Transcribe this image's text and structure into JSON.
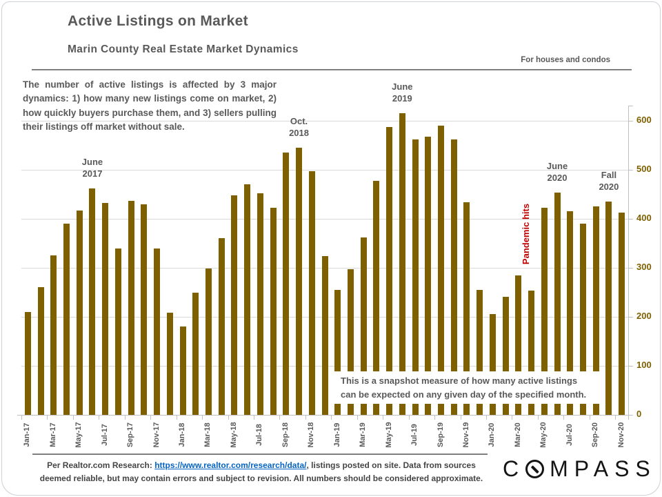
{
  "header": {
    "title": "Active Listings on Market",
    "subtitle": "Marin County Real Estate Market Dynamics",
    "tagline": "For houses and condos"
  },
  "intro_text": "The number of active listings is affected by 3 major dynamics: 1) how many new listings come on market, 2) how quickly buyers purchase them, and 3) sellers pulling their listings off market without sale.",
  "chart_data": {
    "type": "bar",
    "title": "Active Listings on Market",
    "xlabel": "",
    "ylabel": "",
    "ylim": [
      0,
      650
    ],
    "y_ticks": [
      0,
      100,
      200,
      300,
      400,
      500,
      600
    ],
    "x_label_every": 2,
    "grid": "horizontal",
    "axis_side": "right",
    "categories": [
      "Jan-17",
      "Feb-17",
      "Mar-17",
      "Apr-17",
      "May-17",
      "Jun-17",
      "Jul-17",
      "Aug-17",
      "Sep-17",
      "Oct-17",
      "Nov-17",
      "Dec-17",
      "Jan-18",
      "Feb-18",
      "Mar-18",
      "Apr-18",
      "May-18",
      "Jun-18",
      "Jul-18",
      "Aug-18",
      "Sep-18",
      "Oct-18",
      "Nov-18",
      "Dec-18",
      "Jan-19",
      "Feb-19",
      "Mar-19",
      "Apr-19",
      "May-19",
      "Jun-19",
      "Jul-19",
      "Aug-19",
      "Sep-19",
      "Oct-19",
      "Nov-19",
      "Dec-19",
      "Jan-20",
      "Feb-20",
      "Mar-20",
      "Apr-20",
      "May-20",
      "Jun-20",
      "Jul-20",
      "Aug-20",
      "Sep-20",
      "Oct-20",
      "Nov-20"
    ],
    "values": [
      210,
      260,
      325,
      390,
      417,
      462,
      432,
      340,
      437,
      430,
      340,
      209,
      181,
      250,
      298,
      360,
      448,
      470,
      452,
      423,
      535,
      545,
      497,
      324,
      255,
      297,
      362,
      477,
      587,
      615,
      562,
      567,
      590,
      562,
      434,
      255,
      206,
      241,
      284,
      254,
      423,
      453,
      416,
      390,
      426,
      435,
      412
    ],
    "colors": {
      "bar": "#7f6000",
      "y_label": "#7f6000",
      "gridline": "#d9d9d9",
      "axis": "#bfbfbf",
      "annotation": "#595959",
      "event": "#c00000"
    },
    "annotations": [
      {
        "lines": "June\n2017",
        "month": "Jun-17"
      },
      {
        "lines": "Oct.\n2018",
        "month": "Oct-18"
      },
      {
        "lines": "June\n2019",
        "month": "Jun-19"
      },
      {
        "lines": "June\n2020",
        "month": "Jun-20"
      },
      {
        "lines": "Fall\n2020",
        "month": "Oct-20"
      }
    ],
    "event_label": {
      "text": "Pandemic hits",
      "month": "Apr-20"
    },
    "callout": "This is a snapshot measure of how many active listings can be expected on any given day of the specified month."
  },
  "footer": {
    "line1_prefix": "Per Realtor.com  Research:  ",
    "link_text": "https://www.realtor.com/research/data/",
    "line1_suffix": ", listings  posted  on  site. Data from sources",
    "line2": "deemed reliable,  but may  contain  errors and subject  to revision.  All numbers should  be considered  approximate."
  },
  "logo": {
    "part1": "C",
    "part2": "MPASS",
    "icon": "compass-circle-needle"
  }
}
